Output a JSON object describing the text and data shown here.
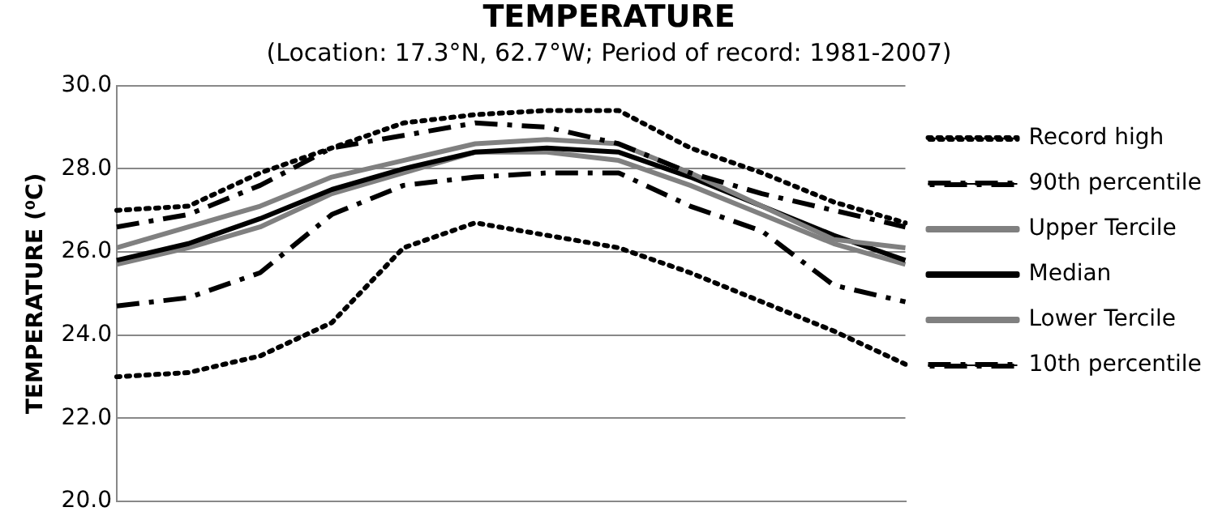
{
  "chart_data": {
    "type": "line",
    "title": "TEMPERATURE",
    "subtitle": "(Location: 17.3°N, 62.7°W; Period of record: 1981-2007)",
    "ylabel": "TEMPERATURE (⁰C)",
    "categories": [
      null,
      null,
      null,
      null,
      null,
      null,
      null,
      null,
      null,
      null,
      null,
      null
    ],
    "series": [
      {
        "name": "Record high",
        "color": "#000000",
        "line_style": "dotted",
        "values": [
          27.0,
          27.1,
          27.9,
          28.5,
          29.1,
          29.3,
          29.4,
          29.4,
          28.5,
          27.9,
          27.2,
          26.7
        ]
      },
      {
        "name": "90th percentile",
        "color": "#000000",
        "line_style": "dashed",
        "values": [
          26.6,
          26.9,
          27.6,
          28.5,
          28.8,
          29.1,
          29.0,
          28.6,
          27.9,
          27.4,
          27.0,
          26.6
        ]
      },
      {
        "name": "Upper Tercile",
        "color": "#808080",
        "line_style": "solid",
        "values": [
          26.1,
          26.6,
          27.1,
          27.8,
          28.2,
          28.6,
          28.7,
          28.6,
          27.9,
          27.1,
          26.3,
          26.1
        ]
      },
      {
        "name": "Median",
        "color": "#000000",
        "line_style": "solid",
        "values": [
          25.8,
          26.2,
          26.8,
          27.5,
          28.0,
          28.4,
          28.5,
          28.4,
          27.8,
          27.1,
          26.4,
          25.8
        ]
      },
      {
        "name": "Lower Tercile",
        "color": "#808080",
        "line_style": "solid",
        "values": [
          25.7,
          26.1,
          26.6,
          27.4,
          27.9,
          28.4,
          28.4,
          28.2,
          27.6,
          26.9,
          26.2,
          25.7
        ]
      },
      {
        "name": "10th percentile",
        "color": "#000000",
        "line_style": "dashed",
        "values": [
          24.7,
          24.9,
          25.5,
          26.9,
          27.6,
          27.8,
          27.9,
          27.9,
          27.1,
          26.5,
          25.2,
          24.8
        ]
      },
      {
        "color": "#000000",
        "line_style": "dotted",
        "values": [
          23.0,
          23.1,
          23.5,
          24.3,
          26.1,
          26.7,
          26.4,
          26.1,
          25.5,
          24.8,
          24.1,
          23.3
        ]
      }
    ],
    "ylim": [
      20,
      30
    ],
    "yticks": [
      {
        "value": 20,
        "label": "20.0"
      },
      {
        "value": 22,
        "label": "22.0"
      },
      {
        "value": 24,
        "label": "24.0"
      },
      {
        "value": 26,
        "label": "26.0"
      },
      {
        "value": 28,
        "label": "28.0"
      },
      {
        "value": 30,
        "label": "30.0"
      }
    ],
    "grid": "y",
    "legend": "right",
    "marker": "none",
    "tick_labels": "y"
  }
}
